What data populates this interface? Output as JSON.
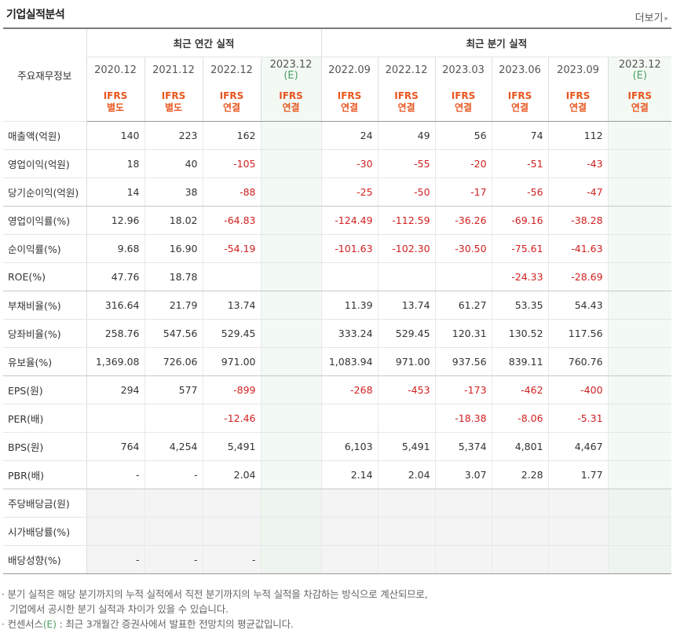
{
  "title": "기업실적분석",
  "more_label": "더보기",
  "header_label": "주요재무정보",
  "groups": {
    "annual": "최근 연간 실적",
    "quarterly": "최근 분기 실적"
  },
  "columns": [
    {
      "date": "2020.12",
      "ifrs1": "IFRS",
      "ifrs2": "별도",
      "est": ""
    },
    {
      "date": "2021.12",
      "ifrs1": "IFRS",
      "ifrs2": "별도",
      "est": ""
    },
    {
      "date": "2022.12",
      "ifrs1": "IFRS",
      "ifrs2": "연결",
      "est": ""
    },
    {
      "date": "2023.12",
      "ifrs1": "IFRS",
      "ifrs2": "연결",
      "est": "(E)"
    },
    {
      "date": "2022.09",
      "ifrs1": "IFRS",
      "ifrs2": "연결",
      "est": ""
    },
    {
      "date": "2022.12",
      "ifrs1": "IFRS",
      "ifrs2": "연결",
      "est": ""
    },
    {
      "date": "2023.03",
      "ifrs1": "IFRS",
      "ifrs2": "연결",
      "est": ""
    },
    {
      "date": "2023.06",
      "ifrs1": "IFRS",
      "ifrs2": "연결",
      "est": ""
    },
    {
      "date": "2023.09",
      "ifrs1": "IFRS",
      "ifrs2": "연결",
      "est": ""
    },
    {
      "date": "2023.12",
      "ifrs1": "IFRS",
      "ifrs2": "연결",
      "est": "(E)"
    }
  ],
  "rows": [
    {
      "label": "매출액(억원)",
      "values": [
        "140",
        "223",
        "162",
        "",
        "24",
        "49",
        "56",
        "74",
        "112",
        ""
      ]
    },
    {
      "label": "영업이익(억원)",
      "values": [
        "18",
        "40",
        "-105",
        "",
        "-30",
        "-55",
        "-20",
        "-51",
        "-43",
        ""
      ]
    },
    {
      "label": "당기순이익(억원)",
      "values": [
        "14",
        "38",
        "-88",
        "",
        "-25",
        "-50",
        "-17",
        "-56",
        "-47",
        ""
      ]
    },
    {
      "label": "영업이익률(%)",
      "values": [
        "12.96",
        "18.02",
        "-64.83",
        "",
        "-124.49",
        "-112.59",
        "-36.26",
        "-69.16",
        "-38.28",
        ""
      ]
    },
    {
      "label": "순이익률(%)",
      "values": [
        "9.68",
        "16.90",
        "-54.19",
        "",
        "-101.63",
        "-102.30",
        "-30.50",
        "-75.61",
        "-41.63",
        ""
      ]
    },
    {
      "label": "ROE(%)",
      "values": [
        "47.76",
        "18.78",
        "",
        "",
        "",
        "",
        "",
        "-24.33",
        "-28.69",
        ""
      ]
    },
    {
      "label": "부채비율(%)",
      "values": [
        "316.64",
        "21.79",
        "13.74",
        "",
        "11.39",
        "13.74",
        "61.27",
        "53.35",
        "54.43",
        ""
      ]
    },
    {
      "label": "당좌비율(%)",
      "values": [
        "258.76",
        "547.56",
        "529.45",
        "",
        "333.24",
        "529.45",
        "120.31",
        "130.52",
        "117.56",
        ""
      ]
    },
    {
      "label": "유보율(%)",
      "values": [
        "1,369.08",
        "726.06",
        "971.00",
        "",
        "1,083.94",
        "971.00",
        "937.56",
        "839.11",
        "760.76",
        ""
      ]
    },
    {
      "label": "EPS(원)",
      "values": [
        "294",
        "577",
        "-899",
        "",
        "-268",
        "-453",
        "-173",
        "-462",
        "-400",
        ""
      ]
    },
    {
      "label": "PER(배)",
      "values": [
        "",
        "",
        "-12.46",
        "",
        "",
        "",
        "-18.38",
        "-8.06",
        "-5.31",
        ""
      ]
    },
    {
      "label": "BPS(원)",
      "values": [
        "764",
        "4,254",
        "5,491",
        "",
        "6,103",
        "5,491",
        "5,374",
        "4,801",
        "4,467",
        ""
      ]
    },
    {
      "label": "PBR(배)",
      "values": [
        "-",
        "-",
        "2.04",
        "",
        "2.14",
        "2.04",
        "3.07",
        "2.28",
        "1.77",
        ""
      ]
    },
    {
      "label": "주당배당금(원)",
      "values": [
        "",
        "",
        "",
        "",
        "",
        "",
        "",
        "",
        "",
        ""
      ]
    },
    {
      "label": "시가배당률(%)",
      "values": [
        "",
        "",
        "",
        "",
        "",
        "",
        "",
        "",
        "",
        ""
      ]
    },
    {
      "label": "배당성향(%)",
      "values": [
        "-",
        "-",
        "-",
        "",
        "",
        "",
        "",
        "",
        "",
        ""
      ]
    }
  ],
  "notes": {
    "line1": "분기 실적은 해당 분기까지의 누적 실적에서 직전 분기까지의 누적 실적을 차감하는 방식으로 계산되므로,",
    "line2": "기업에서 공시한 분기 실적과 차이가 있을 수 있습니다.",
    "line3_pre": "컨센서스",
    "line3_est": "(E)",
    "line3_post": " : 최근 3개월간 증권사에서 발표한 전망치의 평균값입니다."
  },
  "colors": {
    "negative": "#d02020",
    "ifrs": "#e8561f",
    "estimate": "#4c9e63"
  }
}
